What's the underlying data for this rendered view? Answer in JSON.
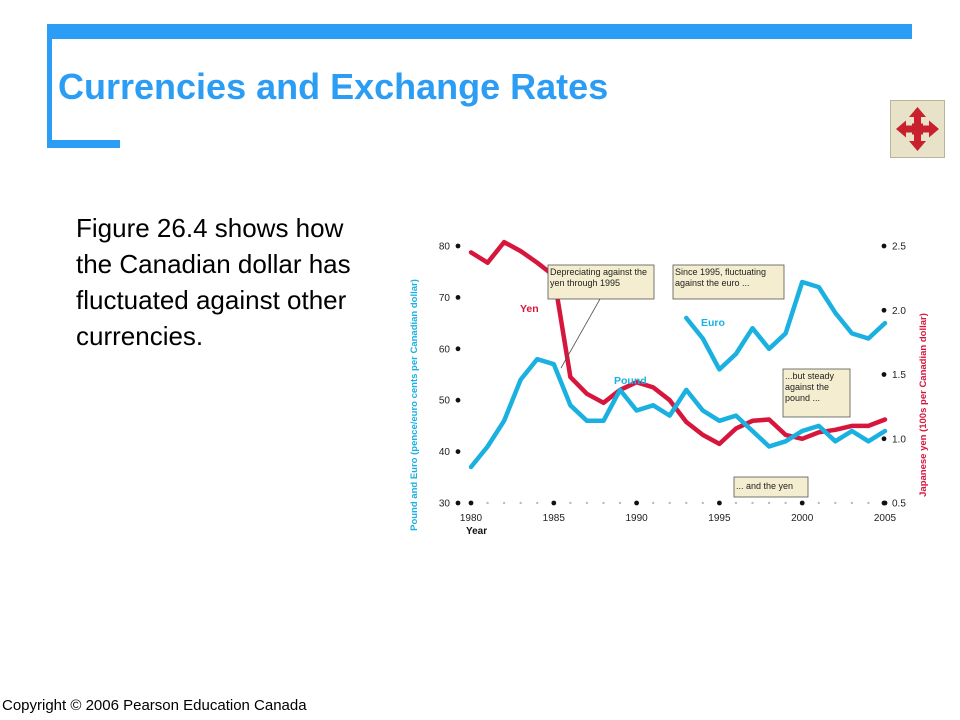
{
  "slide": {
    "title": "Currencies and Exchange Rates",
    "body": "Figure 26.4 shows how the Canadian dollar has fluctuated against other currencies.",
    "copyright": "Copyright © 2006 Pearson Education Canada"
  },
  "nav_icon": "four-way-arrows-icon",
  "colors": {
    "accent": "#2b9df4",
    "yen": "#d6163d",
    "pound_euro": "#1ab0e0",
    "callout_bg": "#f4edcf"
  },
  "chart_data": {
    "type": "line",
    "xlabel": "Year",
    "ylabel_left": "Pound and Euro (pence/euro cents per Canadian dollar)",
    "ylabel_right": "Japanese yen (100s per Canadian dollar)",
    "xlim": [
      1980,
      2005
    ],
    "ylim_left": [
      30,
      80
    ],
    "ylim_right": [
      0.5,
      2.5
    ],
    "x_ticks": [
      "1980",
      "1985",
      "1990",
      "1995",
      "2000",
      "2005"
    ],
    "y_ticks_left": [
      "30",
      "40",
      "50",
      "60",
      "70",
      "80"
    ],
    "y_ticks_right": [
      "0.5",
      "1.0",
      "1.5",
      "2.0",
      "2.5"
    ],
    "series": [
      {
        "name": "Yen",
        "axis": "right",
        "x": [
          1980,
          1981,
          1982,
          1983,
          1984,
          1985,
          1986,
          1987,
          1988,
          1989,
          1990,
          1991,
          1992,
          1993,
          1994,
          1995,
          1996,
          1997,
          1998,
          1999,
          2000,
          2001,
          2002,
          2003,
          2004,
          2005
        ],
        "y": [
          2.45,
          2.37,
          2.53,
          2.46,
          2.37,
          2.27,
          1.48,
          1.35,
          1.28,
          1.38,
          1.44,
          1.4,
          1.3,
          1.13,
          1.03,
          0.96,
          1.08,
          1.14,
          1.15,
          1.03,
          1.0,
          1.05,
          1.07,
          1.1,
          1.1,
          1.15
        ]
      },
      {
        "name": "Pound",
        "axis": "left",
        "x": [
          1980,
          1981,
          1982,
          1983,
          1984,
          1985,
          1986,
          1987,
          1988,
          1989,
          1990,
          1991,
          1992,
          1993,
          1994,
          1995,
          1996,
          1997,
          1998,
          1999,
          2000,
          2001,
          2002,
          2003,
          2004,
          2005
        ],
        "y": [
          37,
          41,
          46,
          54,
          58,
          57,
          49,
          46,
          46,
          52,
          48,
          49,
          47,
          52,
          48,
          46,
          47,
          44,
          41,
          42,
          44,
          45,
          42,
          44,
          42,
          44
        ]
      },
      {
        "name": "Euro",
        "axis": "left",
        "x": [
          1993,
          1994,
          1995,
          1996,
          1997,
          1998,
          1999,
          2000,
          2001,
          2002,
          2003,
          2004,
          2005
        ],
        "y": [
          66,
          62,
          56,
          59,
          64,
          60,
          63,
          73,
          72,
          67,
          63,
          62,
          65
        ]
      }
    ],
    "annotations": [
      "Depreciating against the yen through 1995",
      "Since 1995, fluctuating against the euro ...",
      "...but steady against the pound ...",
      "... and the yen"
    ]
  }
}
